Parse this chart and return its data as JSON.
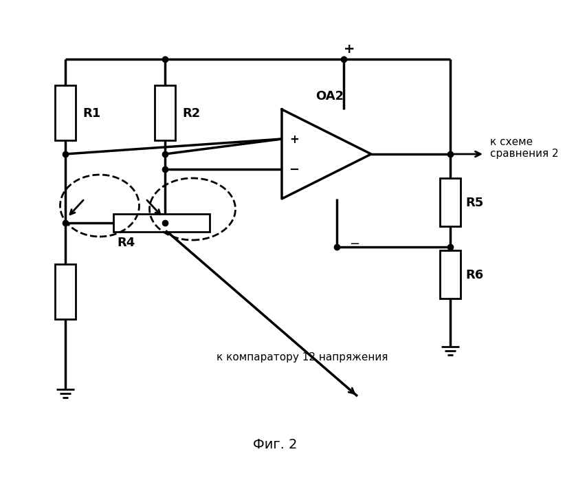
{
  "title": "Фиг. 2",
  "label_R1": "R1",
  "label_R2": "R2",
  "label_R4": "R4",
  "label_R5": "R5",
  "label_R6": "R6",
  "label_OA2": "OA2",
  "label_plus": "+",
  "label_minus": "−",
  "label_right": "к схеме\nсравнения 2",
  "label_bottom": "к компаратору 12 напряжения",
  "line_color": "#000000",
  "bg_color": "#ffffff",
  "lw": 2.0
}
